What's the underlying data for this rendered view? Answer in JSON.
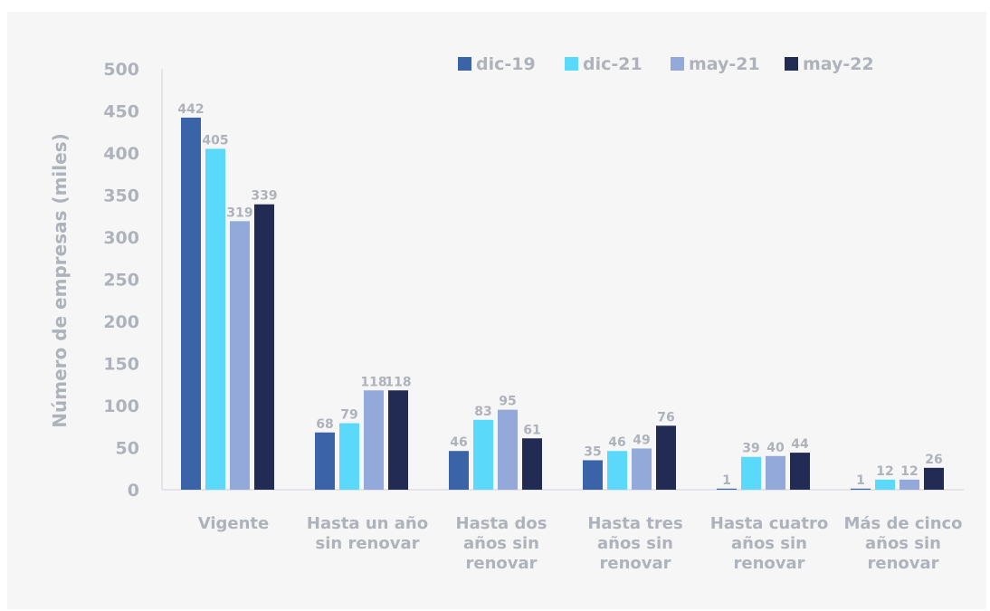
{
  "chart_data": {
    "type": "bar",
    "title": "",
    "xlabel": "",
    "ylabel": "Número de empresas (miles)",
    "ylim": [
      0,
      500
    ],
    "yticks": [
      0,
      50,
      100,
      150,
      200,
      250,
      300,
      350,
      400,
      450,
      500
    ],
    "grid": false,
    "legend_position": "top-right",
    "categories": [
      [
        "Vigente"
      ],
      [
        "Hasta un año",
        "sin renovar"
      ],
      [
        "Hasta dos",
        "años sin",
        "renovar"
      ],
      [
        "Hasta tres",
        "años sin",
        "renovar"
      ],
      [
        "Hasta cuatro",
        "años sin",
        "renovar"
      ],
      [
        "Más de cinco",
        "años sin",
        "renovar"
      ]
    ],
    "series": [
      {
        "name": "dic-19",
        "color": "#3b63a8",
        "values": [
          442,
          68,
          46,
          35,
          1,
          1
        ]
      },
      {
        "name": "dic-21",
        "color": "#5bd9fb",
        "values": [
          405,
          79,
          83,
          46,
          39,
          12
        ]
      },
      {
        "name": "may-21",
        "color": "#93a9d9",
        "values": [
          319,
          118,
          95,
          49,
          40,
          12
        ]
      },
      {
        "name": "may-22",
        "color": "#222b53",
        "values": [
          339,
          118,
          61,
          76,
          44,
          26
        ]
      }
    ]
  }
}
